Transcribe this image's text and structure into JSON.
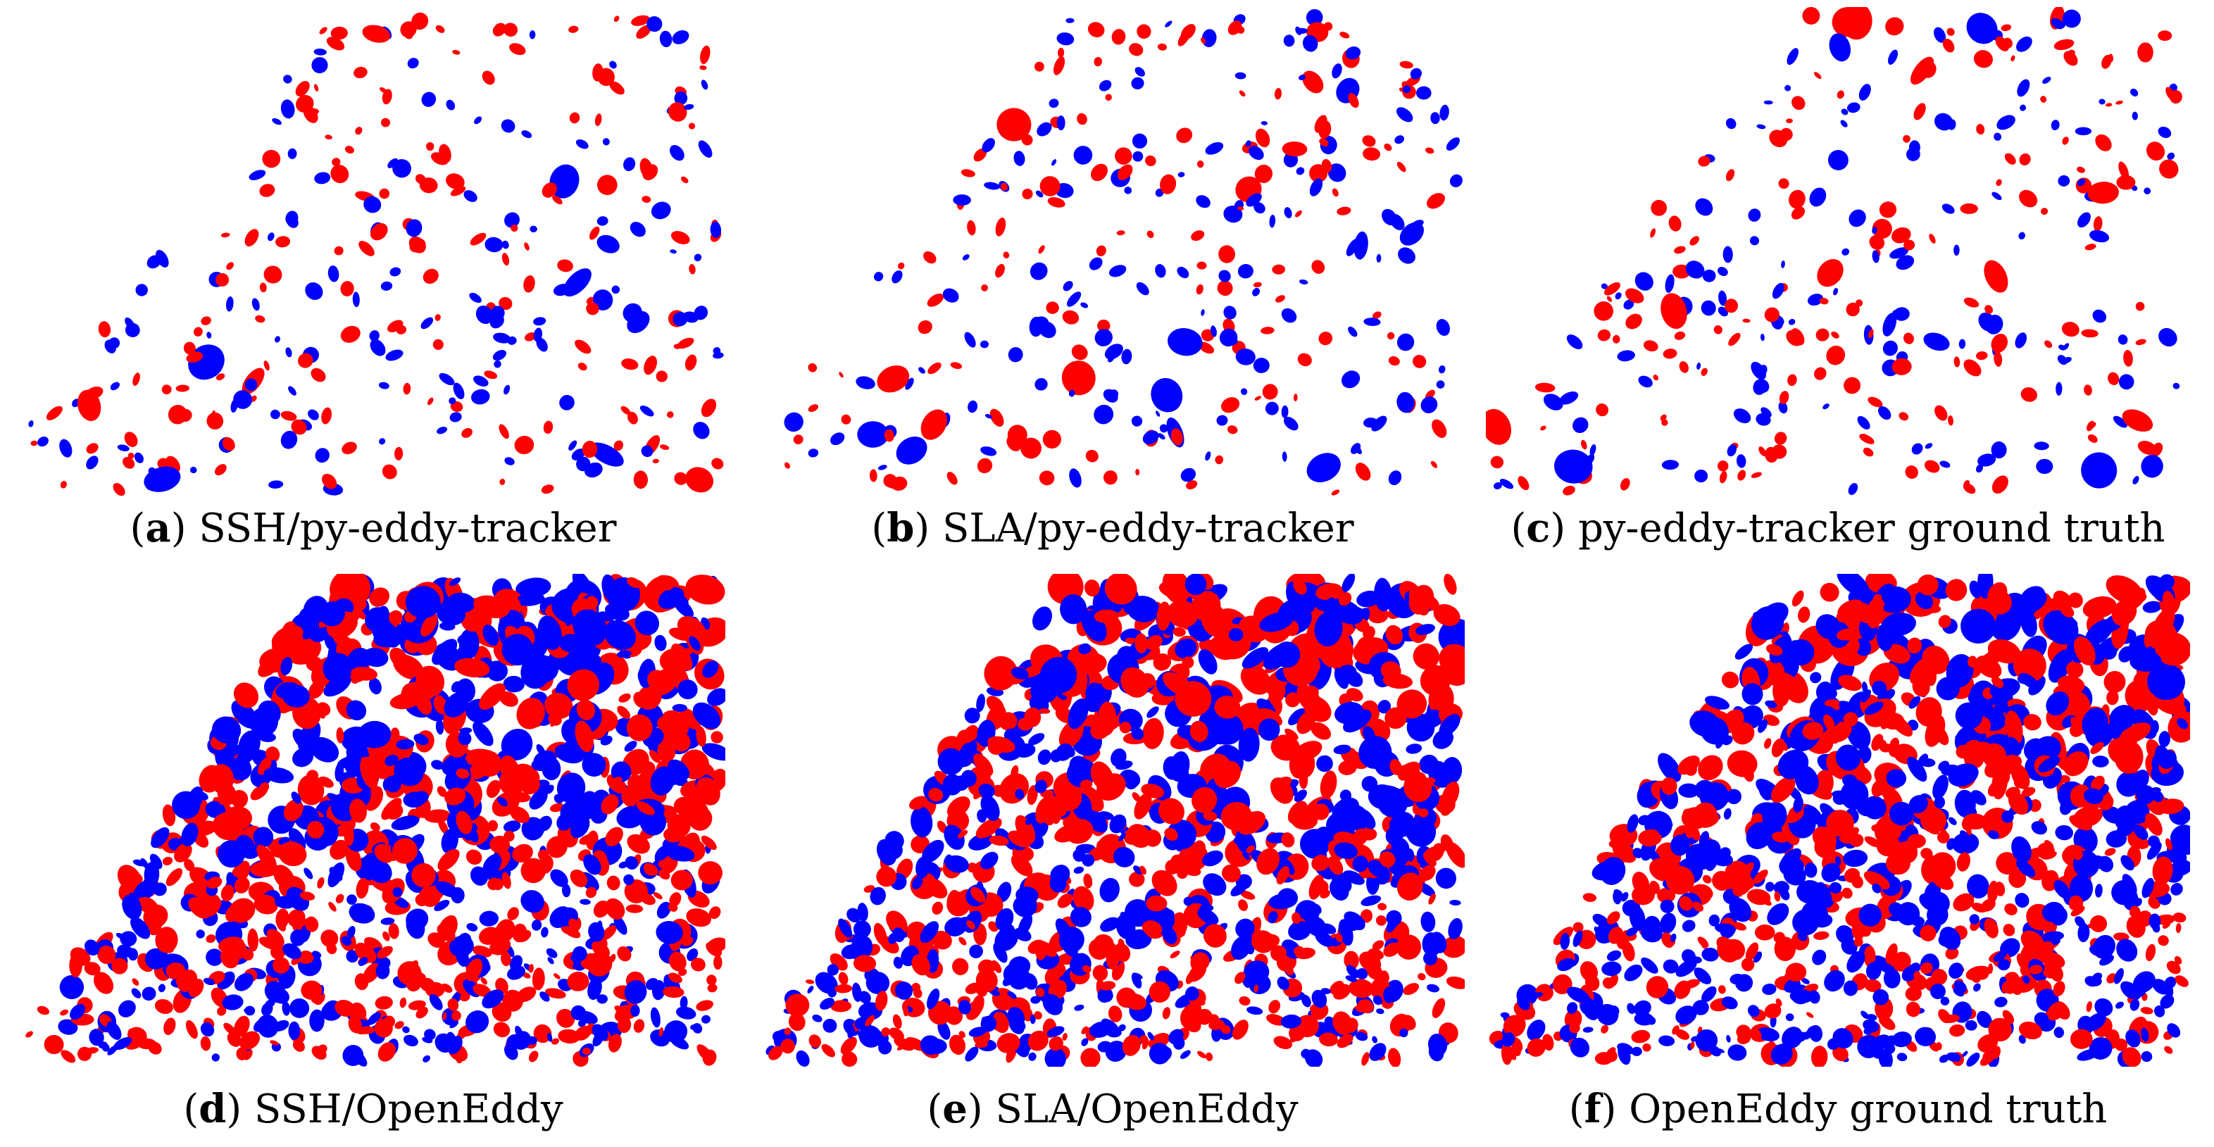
{
  "figure": {
    "colors": {
      "red": "#ff0000",
      "blue": "#0000ff",
      "background": "#ffffff"
    },
    "panels": [
      {
        "id": "a",
        "letter": "a",
        "caption": "SSH/py-eddy-tracker",
        "density": "sparse"
      },
      {
        "id": "b",
        "letter": "b",
        "caption": "SLA/py-eddy-tracker",
        "density": "sparse"
      },
      {
        "id": "c",
        "letter": "c",
        "caption": "py-eddy-tracker ground truth",
        "density": "sparse"
      },
      {
        "id": "d",
        "letter": "d",
        "caption": "SSH/OpenEddy",
        "density": "dense"
      },
      {
        "id": "e",
        "letter": "e",
        "caption": "SLA/OpenEddy",
        "density": "dense"
      },
      {
        "id": "f",
        "letter": "f",
        "caption": "OpenEddy ground truth",
        "density": "dense"
      }
    ]
  }
}
